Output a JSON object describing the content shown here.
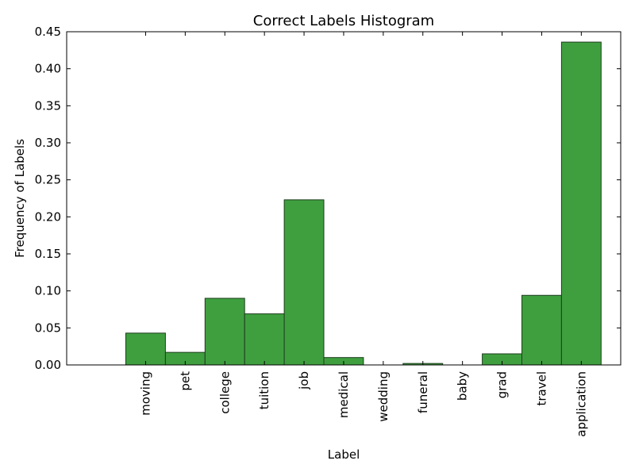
{
  "chart_data": {
    "type": "bar",
    "title": "Correct Labels Histogram",
    "xlabel": "Label",
    "ylabel": "Frequency of Labels",
    "categories": [
      "moving",
      "pet",
      "college",
      "tuition",
      "job",
      "medical",
      "wedding",
      "funeral",
      "baby",
      "grad",
      "travel",
      "application"
    ],
    "values": [
      0.043,
      0.017,
      0.09,
      0.069,
      0.223,
      0.01,
      0.0,
      0.002,
      0.0,
      0.015,
      0.094,
      0.436
    ],
    "ylim": [
      0,
      0.45
    ],
    "yticks": [
      "0.00",
      "0.05",
      "0.10",
      "0.15",
      "0.20",
      "0.25",
      "0.30",
      "0.35",
      "0.40",
      "0.45"
    ],
    "grid": false,
    "legend": "none",
    "bar_color": "#3f9f3f",
    "bar_edge_color": "#1e3d1e"
  }
}
